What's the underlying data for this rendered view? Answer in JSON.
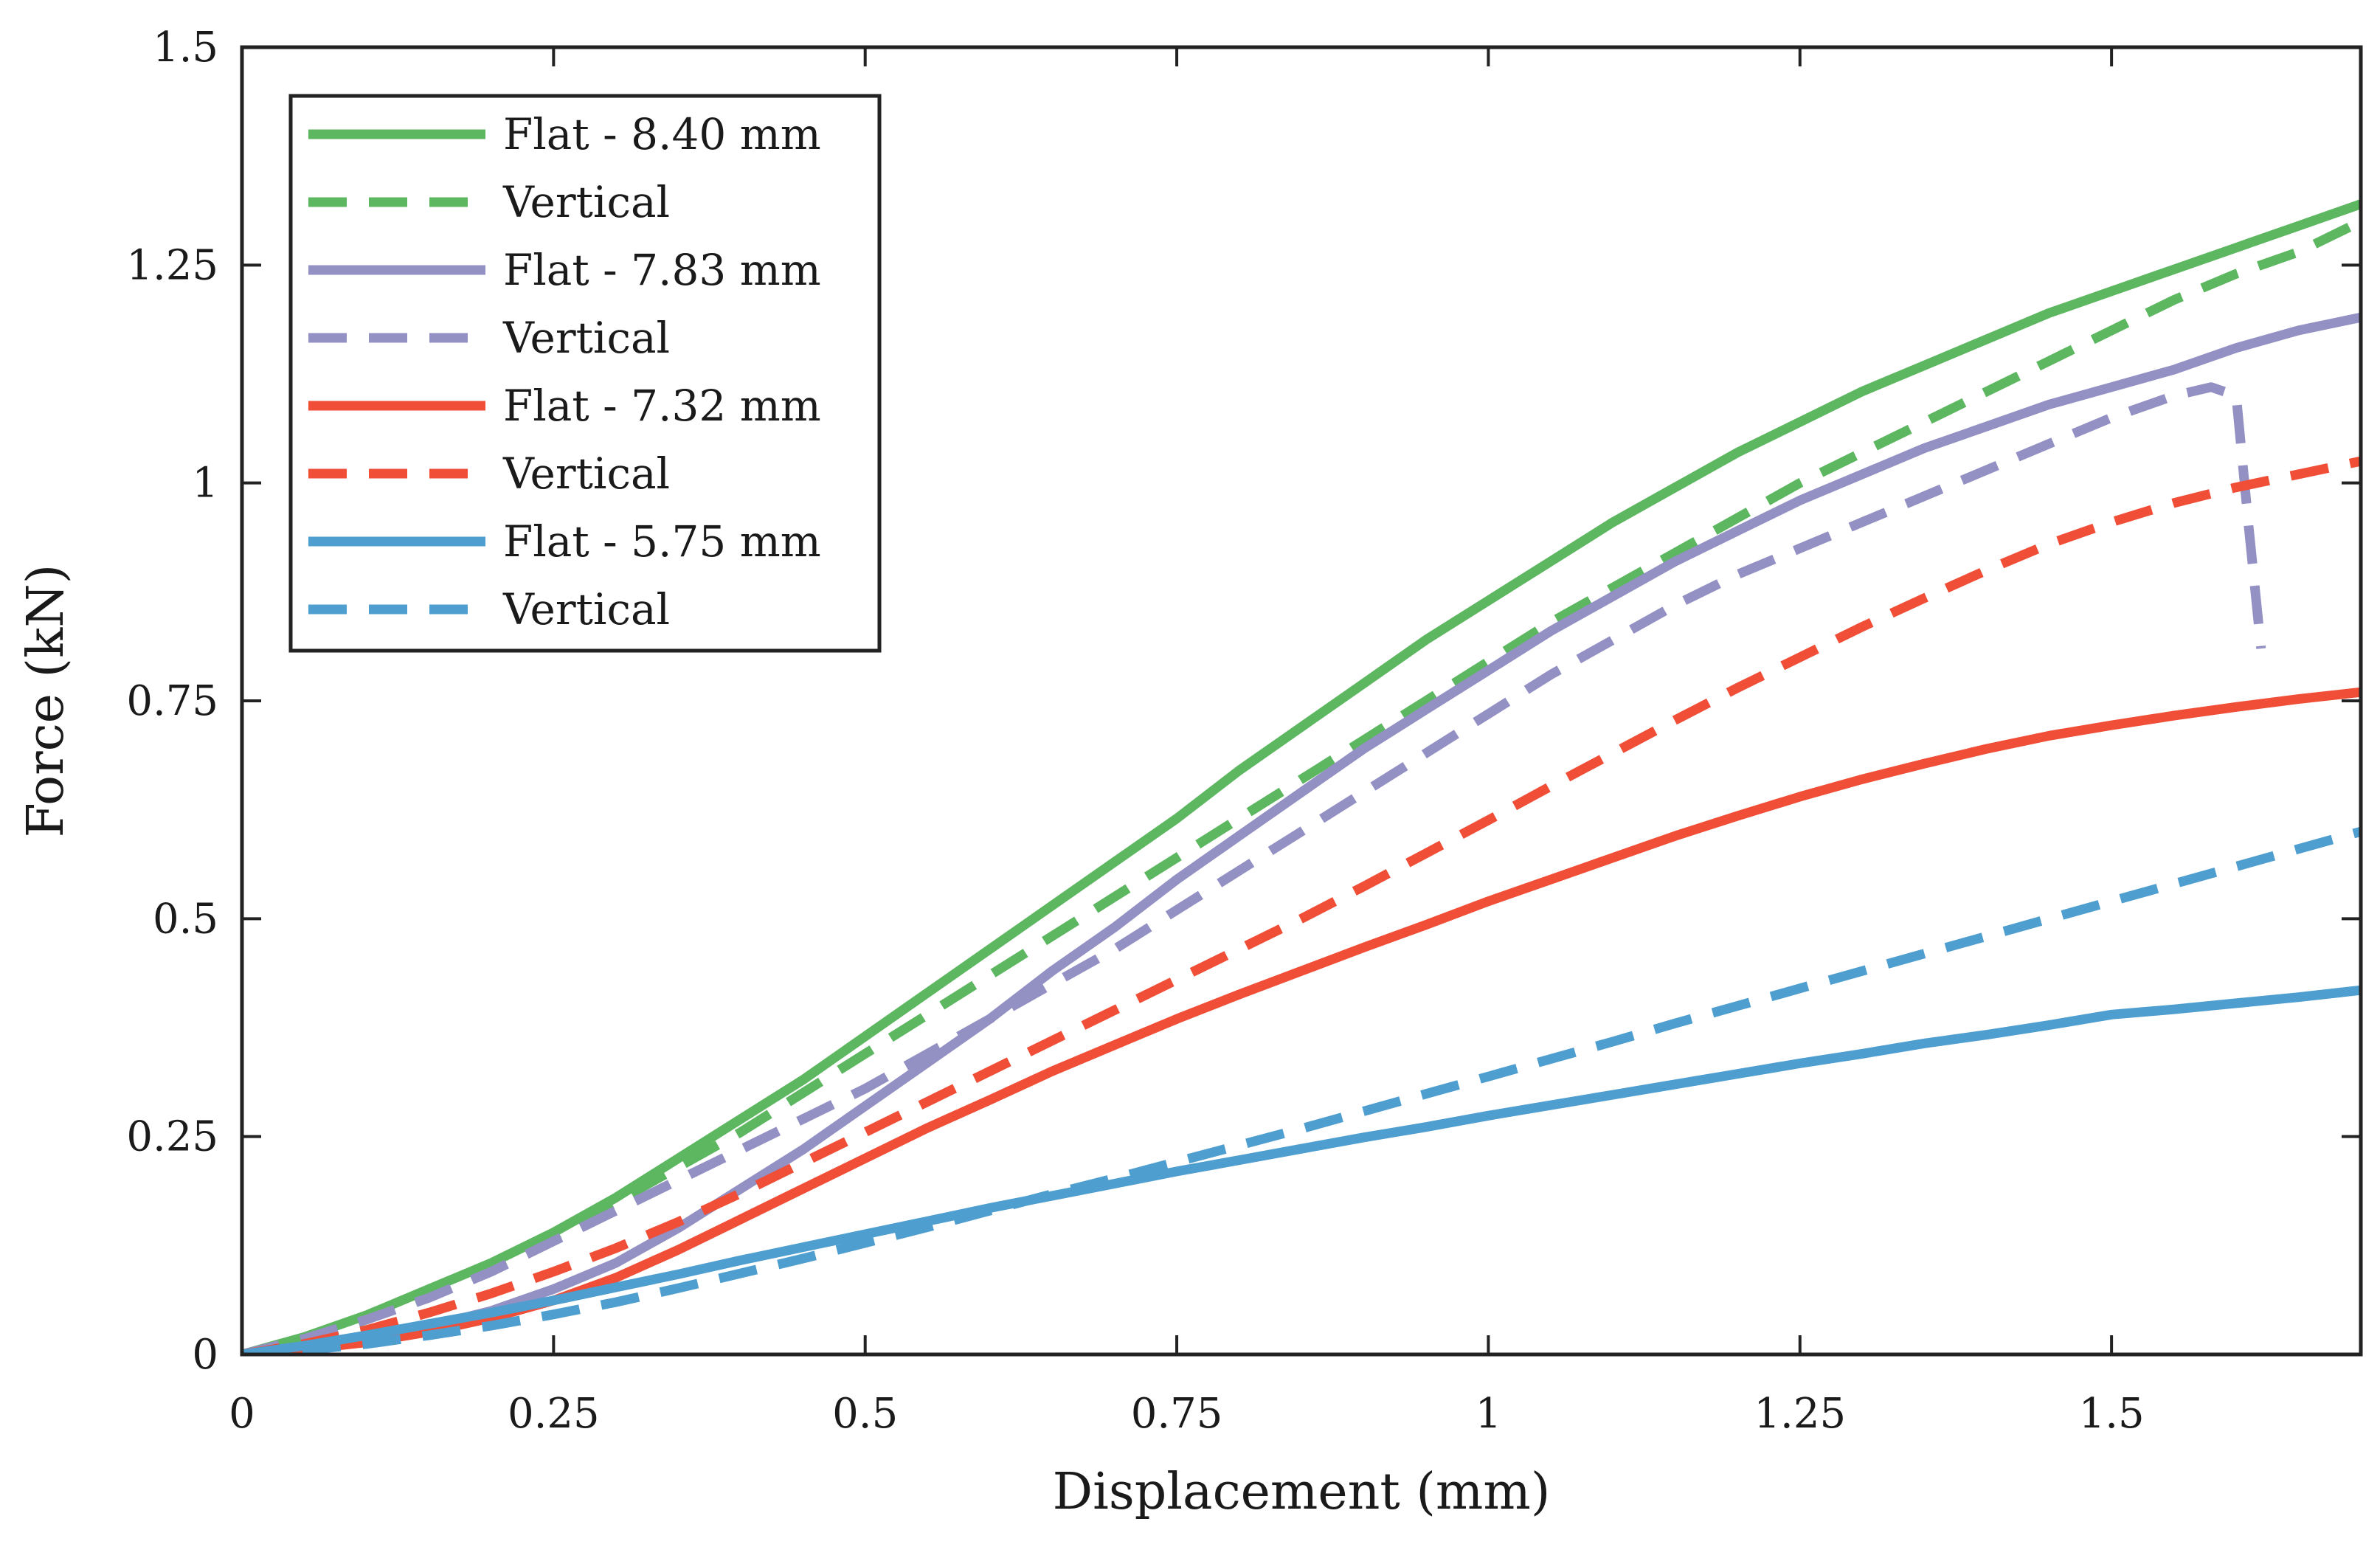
{
  "chart_data": {
    "type": "line",
    "title": "",
    "xlabel": "Displacement (mm)",
    "ylabel": "Force (kN)",
    "xlim": [
      0,
      1.7
    ],
    "ylim": [
      0,
      1.5
    ],
    "xticks": [
      0,
      0.25,
      0.5,
      0.75,
      1,
      1.25,
      1.5
    ],
    "xtick_labels": [
      "0",
      "0.25",
      "0.5",
      "0.75",
      "1",
      "1.25",
      "1.5"
    ],
    "yticks": [
      0,
      0.25,
      0.5,
      0.75,
      1,
      1.25,
      1.5
    ],
    "ytick_labels": [
      "0",
      "0.25",
      "0.5",
      "0.75",
      "1",
      "1.25",
      "1.5"
    ],
    "grid": false,
    "legend_position": "top-left",
    "series": [
      {
        "name": "Flat - 8.40 mm",
        "color": "#5DB761",
        "dash": false,
        "x": [
          0,
          0.05,
          0.1,
          0.15,
          0.2,
          0.25,
          0.3,
          0.35,
          0.4,
          0.45,
          0.5,
          0.55,
          0.6,
          0.65,
          0.7,
          0.75,
          0.8,
          0.85,
          0.9,
          0.95,
          1.0,
          1.05,
          1.1,
          1.15,
          1.2,
          1.25,
          1.3,
          1.35,
          1.4,
          1.45,
          1.5,
          1.55,
          1.6,
          1.65,
          1.7
        ],
        "y": [
          0,
          0.02,
          0.045,
          0.075,
          0.105,
          0.14,
          0.18,
          0.225,
          0.27,
          0.315,
          0.365,
          0.415,
          0.465,
          0.515,
          0.565,
          0.615,
          0.67,
          0.72,
          0.77,
          0.82,
          0.865,
          0.91,
          0.955,
          0.995,
          1.035,
          1.07,
          1.105,
          1.135,
          1.165,
          1.195,
          1.22,
          1.245,
          1.27,
          1.295,
          1.32
        ]
      },
      {
        "name": "Vertical",
        "color": "#5DB761",
        "dash": true,
        "x": [
          0,
          0.05,
          0.1,
          0.15,
          0.2,
          0.25,
          0.3,
          0.35,
          0.4,
          0.45,
          0.5,
          0.55,
          0.6,
          0.65,
          0.7,
          0.75,
          0.8,
          0.85,
          0.9,
          0.95,
          1.0,
          1.05,
          1.1,
          1.15,
          1.2,
          1.25,
          1.3,
          1.35,
          1.4,
          1.45,
          1.5,
          1.55,
          1.6,
          1.65,
          1.7
        ],
        "y": [
          0,
          0.015,
          0.04,
          0.068,
          0.1,
          0.135,
          0.175,
          0.215,
          0.255,
          0.3,
          0.345,
          0.39,
          0.435,
          0.48,
          0.525,
          0.57,
          0.615,
          0.66,
          0.705,
          0.75,
          0.795,
          0.84,
          0.88,
          0.92,
          0.96,
          1.0,
          1.035,
          1.07,
          1.105,
          1.14,
          1.175,
          1.21,
          1.24,
          1.265,
          1.3
        ]
      },
      {
        "name": "Flat - 7.83 mm",
        "color": "#9390C4",
        "dash": false,
        "x": [
          0,
          0.05,
          0.1,
          0.15,
          0.2,
          0.25,
          0.3,
          0.35,
          0.4,
          0.45,
          0.5,
          0.55,
          0.6,
          0.65,
          0.7,
          0.75,
          0.8,
          0.85,
          0.9,
          0.95,
          1.0,
          1.05,
          1.1,
          1.15,
          1.2,
          1.25,
          1.3,
          1.35,
          1.4,
          1.45,
          1.5,
          1.55,
          1.6,
          1.65,
          1.7
        ],
        "y": [
          0,
          0.008,
          0.018,
          0.032,
          0.05,
          0.075,
          0.105,
          0.145,
          0.19,
          0.235,
          0.285,
          0.335,
          0.385,
          0.44,
          0.49,
          0.545,
          0.595,
          0.645,
          0.695,
          0.74,
          0.785,
          0.83,
          0.87,
          0.91,
          0.945,
          0.98,
          1.01,
          1.04,
          1.065,
          1.09,
          1.11,
          1.13,
          1.155,
          1.175,
          1.19
        ]
      },
      {
        "name": "Vertical",
        "color": "#9390C4",
        "dash": true,
        "x": [
          0,
          0.05,
          0.1,
          0.15,
          0.2,
          0.25,
          0.3,
          0.35,
          0.4,
          0.45,
          0.5,
          0.55,
          0.6,
          0.65,
          0.7,
          0.75,
          0.8,
          0.85,
          0.9,
          0.95,
          1.0,
          1.05,
          1.1,
          1.15,
          1.2,
          1.25,
          1.3,
          1.35,
          1.4,
          1.45,
          1.5,
          1.55,
          1.58,
          1.6,
          1.61,
          1.62
        ],
        "y": [
          0,
          0.018,
          0.04,
          0.065,
          0.095,
          0.13,
          0.165,
          0.2,
          0.235,
          0.27,
          0.305,
          0.345,
          0.385,
          0.425,
          0.465,
          0.51,
          0.555,
          0.6,
          0.645,
          0.69,
          0.735,
          0.78,
          0.82,
          0.86,
          0.895,
          0.925,
          0.955,
          0.985,
          1.015,
          1.045,
          1.075,
          1.1,
          1.11,
          1.1,
          0.95,
          0.81
        ]
      },
      {
        "name": "Flat - 7.32 mm",
        "color": "#F04E37",
        "dash": false,
        "x": [
          0,
          0.05,
          0.1,
          0.15,
          0.2,
          0.25,
          0.3,
          0.35,
          0.4,
          0.45,
          0.5,
          0.55,
          0.6,
          0.65,
          0.7,
          0.75,
          0.8,
          0.85,
          0.9,
          0.95,
          1.0,
          1.05,
          1.1,
          1.15,
          1.2,
          1.25,
          1.3,
          1.35,
          1.4,
          1.45,
          1.5,
          1.55,
          1.6,
          1.65,
          1.7
        ],
        "y": [
          0,
          0.006,
          0.014,
          0.026,
          0.042,
          0.062,
          0.088,
          0.12,
          0.155,
          0.19,
          0.225,
          0.26,
          0.292,
          0.325,
          0.355,
          0.385,
          0.413,
          0.44,
          0.467,
          0.493,
          0.52,
          0.545,
          0.57,
          0.595,
          0.618,
          0.64,
          0.66,
          0.678,
          0.695,
          0.71,
          0.722,
          0.733,
          0.743,
          0.752,
          0.76
        ]
      },
      {
        "name": "Vertical",
        "color": "#F04E37",
        "dash": true,
        "x": [
          0,
          0.05,
          0.1,
          0.15,
          0.2,
          0.25,
          0.3,
          0.35,
          0.4,
          0.45,
          0.5,
          0.55,
          0.6,
          0.65,
          0.7,
          0.75,
          0.8,
          0.85,
          0.9,
          0.95,
          1.0,
          1.05,
          1.1,
          1.15,
          1.2,
          1.25,
          1.3,
          1.35,
          1.4,
          1.45,
          1.5,
          1.55,
          1.6,
          1.65,
          1.7
        ],
        "y": [
          0,
          0.012,
          0.028,
          0.048,
          0.07,
          0.095,
          0.122,
          0.152,
          0.185,
          0.22,
          0.255,
          0.29,
          0.325,
          0.36,
          0.395,
          0.43,
          0.465,
          0.5,
          0.537,
          0.575,
          0.613,
          0.652,
          0.69,
          0.728,
          0.765,
          0.8,
          0.835,
          0.868,
          0.9,
          0.93,
          0.955,
          0.977,
          0.995,
          1.01,
          1.025
        ]
      },
      {
        "name": "Flat - 5.75 mm",
        "color": "#4F9ED0",
        "dash": false,
        "x": [
          0,
          0.05,
          0.1,
          0.15,
          0.2,
          0.25,
          0.3,
          0.35,
          0.4,
          0.45,
          0.5,
          0.55,
          0.6,
          0.65,
          0.7,
          0.75,
          0.8,
          0.85,
          0.9,
          0.95,
          1.0,
          1.05,
          1.1,
          1.15,
          1.2,
          1.25,
          1.3,
          1.35,
          1.4,
          1.45,
          1.5,
          1.55,
          1.6,
          1.65,
          1.7
        ],
        "y": [
          0,
          0.01,
          0.022,
          0.035,
          0.048,
          0.062,
          0.077,
          0.092,
          0.108,
          0.123,
          0.138,
          0.153,
          0.168,
          0.182,
          0.196,
          0.21,
          0.223,
          0.236,
          0.249,
          0.261,
          0.274,
          0.286,
          0.298,
          0.31,
          0.322,
          0.334,
          0.345,
          0.357,
          0.367,
          0.378,
          0.39,
          0.396,
          0.403,
          0.41,
          0.418
        ]
      },
      {
        "name": "Vertical",
        "color": "#4F9ED0",
        "dash": true,
        "x": [
          0,
          0.05,
          0.1,
          0.15,
          0.2,
          0.25,
          0.3,
          0.35,
          0.4,
          0.45,
          0.5,
          0.55,
          0.6,
          0.65,
          0.7,
          0.75,
          0.8,
          0.85,
          0.9,
          0.95,
          1.0,
          1.05,
          1.1,
          1.15,
          1.2,
          1.25,
          1.3,
          1.35,
          1.4,
          1.45,
          1.5,
          1.55,
          1.6,
          1.65,
          1.7
        ],
        "y": [
          0,
          0.005,
          0.012,
          0.022,
          0.033,
          0.046,
          0.06,
          0.076,
          0.093,
          0.11,
          0.128,
          0.146,
          0.165,
          0.184,
          0.202,
          0.221,
          0.24,
          0.259,
          0.279,
          0.299,
          0.319,
          0.339,
          0.359,
          0.38,
          0.4,
          0.42,
          0.44,
          0.46,
          0.48,
          0.5,
          0.52,
          0.54,
          0.56,
          0.58,
          0.6
        ]
      }
    ]
  }
}
